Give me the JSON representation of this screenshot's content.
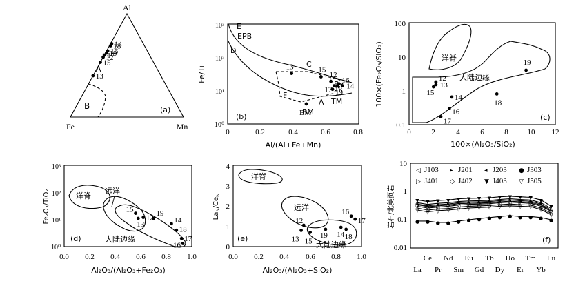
{
  "chart_data": [
    {
      "id": "a",
      "type": "scatter",
      "panel_label": "(a)",
      "vertex_labels": {
        "top": "Al",
        "left": "Fe",
        "right": "Mn"
      },
      "field_labels": [
        "A",
        "B"
      ],
      "points": [
        {
          "label": "12",
          "fe": 0.42,
          "al": 0.58,
          "mn": 0.0
        },
        {
          "label": "13",
          "fe": 0.6,
          "al": 0.4,
          "mn": 0.0
        },
        {
          "label": "14",
          "fe": 0.28,
          "al": 0.71,
          "mn": 0.01
        },
        {
          "label": "15",
          "fe": 0.47,
          "al": 0.53,
          "mn": 0.0
        },
        {
          "label": "16",
          "fe": 0.35,
          "al": 0.64,
          "mn": 0.01
        },
        {
          "label": "17",
          "fe": 0.4,
          "al": 0.6,
          "mn": 0.0
        },
        {
          "label": "18",
          "fe": 0.3,
          "al": 0.69,
          "mn": 0.01
        },
        {
          "label": "19",
          "fe": 0.37,
          "al": 0.62,
          "mn": 0.01
        }
      ]
    },
    {
      "id": "b",
      "type": "scatter",
      "panel_label": "(b)",
      "xlabel": "Al/(Al+Fe+Mn)",
      "ylabel": "Fe/Ti",
      "xlim": [
        0,
        0.8
      ],
      "ylim_log10": [
        0,
        3
      ],
      "xticks": [
        "0",
        "0.2",
        "0.4",
        "0.6",
        "0.8"
      ],
      "yticks": [
        "10⁰",
        "10¹",
        "10²",
        "10³"
      ],
      "field_labels": [
        "E",
        "EPB",
        "D",
        "C",
        "B",
        "A",
        "F",
        "BM",
        "TM"
      ],
      "points": [
        {
          "label": "13",
          "x": 0.39,
          "y": 33
        },
        {
          "label": "15",
          "x": 0.57,
          "y": 26
        },
        {
          "label": "12",
          "x": 0.63,
          "y": 19
        },
        {
          "label": "16",
          "x": 0.68,
          "y": 16
        },
        {
          "label": "17",
          "x": 0.65,
          "y": 14
        },
        {
          "label": "18",
          "x": 0.67,
          "y": 14
        },
        {
          "label": "14",
          "x": 0.7,
          "y": 14
        },
        {
          "label": "19",
          "x": 0.64,
          "y": 11
        },
        {
          "label": "BM",
          "x": 0.48,
          "y": 4
        }
      ]
    },
    {
      "id": "c",
      "type": "scatter",
      "panel_label": "(c)",
      "xlabel": "100×(Al₂O₃/SiO₂)",
      "ylabel": "100×(Fe₂O₃/SiO₂)",
      "xlim": [
        0,
        12
      ],
      "ylim_log10": [
        -1,
        2
      ],
      "xticks": [
        "0",
        "2",
        "4",
        "6",
        "8",
        "10",
        "12"
      ],
      "yticks": [
        "0.1",
        "1",
        "10",
        "100"
      ],
      "field_labels": [
        "洋脊",
        "大陆边缘"
      ],
      "points": [
        {
          "label": "12",
          "x": 2.2,
          "y": 1.8
        },
        {
          "label": "13",
          "x": 2.2,
          "y": 1.5
        },
        {
          "label": "15",
          "x": 2.0,
          "y": 1.3
        },
        {
          "label": "14",
          "x": 3.5,
          "y": 0.65
        },
        {
          "label": "16",
          "x": 3.3,
          "y": 0.3
        },
        {
          "label": "17",
          "x": 2.6,
          "y": 0.17
        },
        {
          "label": "18",
          "x": 7.2,
          "y": 0.8
        },
        {
          "label": "19",
          "x": 9.6,
          "y": 4.0
        }
      ]
    },
    {
      "id": "d",
      "type": "scatter",
      "panel_label": "(d)",
      "xlabel": "Al₂O₃/(Al₂O₃+Fe₂O₃)",
      "ylabel": "Fe₂O₃/TiO₂",
      "xlim": [
        0,
        1
      ],
      "ylim_log10": [
        0,
        3
      ],
      "xticks": [
        "0.0",
        "0.2",
        "0.4",
        "0.6",
        "0.8",
        "1.0"
      ],
      "yticks": [
        "10⁰",
        "10¹",
        "10²",
        "10³"
      ],
      "field_labels": [
        "洋脊",
        "远洋",
        "大陆边缘"
      ],
      "points": [
        {
          "label": "15",
          "x": 0.56,
          "y": 17
        },
        {
          "label": "13",
          "x": 0.58,
          "y": 11
        },
        {
          "label": "12",
          "x": 0.62,
          "y": 12
        },
        {
          "label": "19",
          "x": 0.7,
          "y": 11
        },
        {
          "label": "14",
          "x": 0.84,
          "y": 7
        },
        {
          "label": "18",
          "x": 0.88,
          "y": 4
        },
        {
          "label": "17",
          "x": 0.92,
          "y": 2
        },
        {
          "label": "16",
          "x": 0.93,
          "y": 1.3
        }
      ]
    },
    {
      "id": "e",
      "type": "scatter",
      "panel_label": "(e)",
      "xlabel": "Al₂O₃/(Al₂O₃+SiO₂)",
      "ylabel": "La_N/Ce_N",
      "xlim": [
        0,
        1
      ],
      "ylim": [
        0,
        4
      ],
      "xticks": [
        "0.0",
        "0.2",
        "0.4",
        "0.6",
        "0.8",
        "1.0"
      ],
      "yticks": [
        "0",
        "1",
        "2",
        "3",
        "4"
      ],
      "field_labels": [
        "洋脊",
        "远洋",
        "大陆边缘"
      ],
      "points": [
        {
          "label": "12",
          "x": 0.55,
          "y": 1.05
        },
        {
          "label": "13",
          "x": 0.53,
          "y": 0.8
        },
        {
          "label": "15",
          "x": 0.6,
          "y": 0.7
        },
        {
          "label": "19",
          "x": 0.72,
          "y": 0.85
        },
        {
          "label": "14",
          "x": 0.84,
          "y": 0.95
        },
        {
          "label": "18",
          "x": 0.88,
          "y": 0.85
        },
        {
          "label": "16",
          "x": 0.92,
          "y": 1.5
        },
        {
          "label": "17",
          "x": 0.95,
          "y": 1.35
        }
      ]
    },
    {
      "id": "f",
      "type": "line",
      "panel_label": "(f)",
      "ylabel": "岩石/北美页岩",
      "ylim_log10": [
        -2,
        1
      ],
      "yticks": [
        "0.01",
        "0.1",
        "1",
        "10"
      ],
      "categories": [
        "La",
        "Ce",
        "Pr",
        "Nd",
        "Sm",
        "Eu",
        "Gd",
        "Tb",
        "Dy",
        "Ho",
        "Er",
        "Tm",
        "Yb",
        "Lu"
      ],
      "xtick_labels_top_row": [
        "Ce",
        "Nd",
        "Eu",
        "Tb",
        "Ho",
        "Tm",
        "Lu"
      ],
      "xtick_labels_bottom_row": [
        "La",
        "Pr",
        "Sm",
        "Gd",
        "Dy",
        "Er",
        "Yb"
      ],
      "series": [
        {
          "name": "J103",
          "marker": "◁",
          "values": [
            0.3,
            0.26,
            0.28,
            0.3,
            0.33,
            0.35,
            0.36,
            0.37,
            0.4,
            0.42,
            0.4,
            0.38,
            0.3,
            0.2
          ]
        },
        {
          "name": "J201",
          "marker": "▸",
          "values": [
            0.4,
            0.35,
            0.38,
            0.4,
            0.44,
            0.46,
            0.47,
            0.48,
            0.52,
            0.55,
            0.52,
            0.5,
            0.4,
            0.25
          ]
        },
        {
          "name": "J203",
          "marker": "◂",
          "values": [
            0.36,
            0.31,
            0.34,
            0.36,
            0.4,
            0.42,
            0.43,
            0.44,
            0.47,
            0.5,
            0.47,
            0.45,
            0.36,
            0.22
          ]
        },
        {
          "name": "J303",
          "marker": "●",
          "values": [
            0.09,
            0.09,
            0.08,
            0.08,
            0.09,
            0.1,
            0.11,
            0.12,
            0.13,
            0.14,
            0.13,
            0.13,
            0.12,
            0.1
          ]
        },
        {
          "name": "J401",
          "marker": "▷",
          "values": [
            0.34,
            0.29,
            0.31,
            0.33,
            0.37,
            0.38,
            0.39,
            0.4,
            0.43,
            0.45,
            0.43,
            0.41,
            0.33,
            0.2
          ]
        },
        {
          "name": "J402",
          "marker": "◇",
          "values": [
            0.26,
            0.22,
            0.24,
            0.25,
            0.28,
            0.3,
            0.31,
            0.32,
            0.34,
            0.36,
            0.34,
            0.33,
            0.26,
            0.17
          ]
        },
        {
          "name": "J403",
          "marker": "▼",
          "values": [
            0.5,
            0.44,
            0.48,
            0.5,
            0.55,
            0.57,
            0.58,
            0.6,
            0.65,
            0.68,
            0.65,
            0.62,
            0.5,
            0.3
          ]
        },
        {
          "name": "J505",
          "marker": "▽",
          "values": [
            0.22,
            0.19,
            0.21,
            0.22,
            0.24,
            0.26,
            0.27,
            0.28,
            0.3,
            0.31,
            0.3,
            0.29,
            0.23,
            0.15
          ]
        }
      ]
    }
  ]
}
